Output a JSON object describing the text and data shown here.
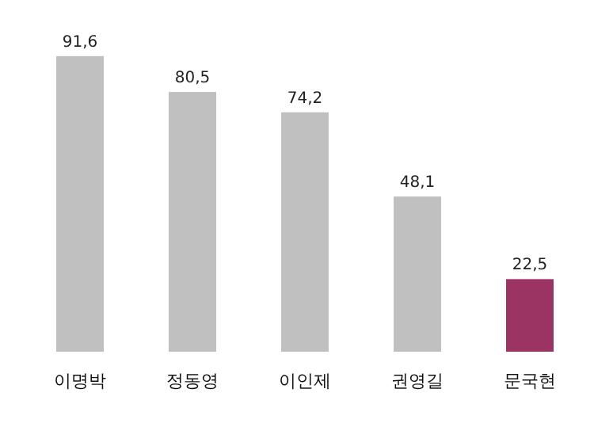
{
  "chart_data": {
    "type": "bar",
    "categories": [
      "이명박",
      "정동영",
      "이인제",
      "권영길",
      "문국현"
    ],
    "values": [
      91.6,
      80.5,
      74.2,
      48.1,
      22.5
    ],
    "value_labels": [
      "91,6",
      "80,5",
      "74,2",
      "48,1",
      "22,5"
    ],
    "colors": [
      "#c0c0c0",
      "#c0c0c0",
      "#c0c0c0",
      "#c0c0c0",
      "#9c3463"
    ]
  }
}
